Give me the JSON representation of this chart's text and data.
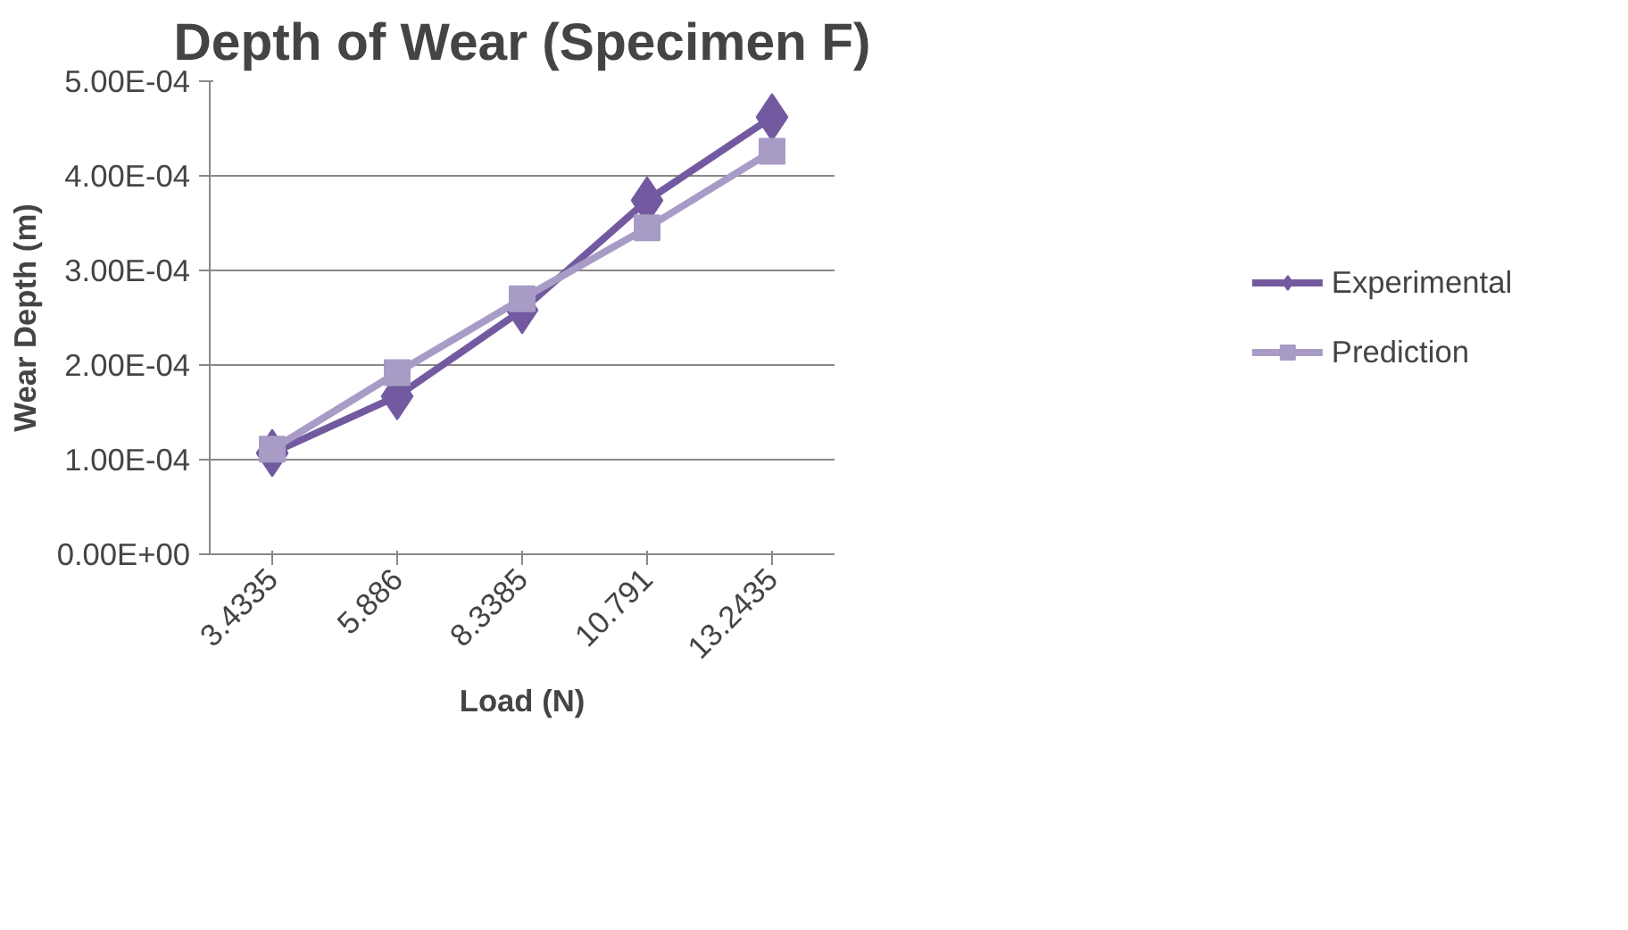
{
  "chart_data": {
    "type": "line",
    "title": "Depth of Wear (Specimen F)",
    "xlabel": "Load (N)",
    "ylabel": "Wear Depth (m)",
    "categories": [
      "3.4335",
      "5.886",
      "8.3385",
      "10.791",
      "13.2435"
    ],
    "series": [
      {
        "name": "Experimental",
        "color": "#735aa0",
        "marker": "diamond",
        "values": [
          0.000107,
          0.000167,
          0.000258,
          0.000374,
          0.000462
        ]
      },
      {
        "name": "Prediction",
        "color": "#a89bc6",
        "marker": "square",
        "values": [
          0.000111,
          0.000192,
          0.00027,
          0.000345,
          0.000426
        ]
      }
    ],
    "ylim": [
      0,
      0.0005
    ],
    "yticks": [
      {
        "value": 0,
        "label": "0.00E+00"
      },
      {
        "value": 0.0001,
        "label": "1.00E-04"
      },
      {
        "value": 0.0002,
        "label": "2.00E-04"
      },
      {
        "value": 0.0003,
        "label": "3.00E-04"
      },
      {
        "value": 0.0004,
        "label": "4.00E-04"
      },
      {
        "value": 0.0005,
        "label": "5.00E-04"
      }
    ],
    "grid": "y",
    "legend": "right",
    "line_style": "solid"
  }
}
